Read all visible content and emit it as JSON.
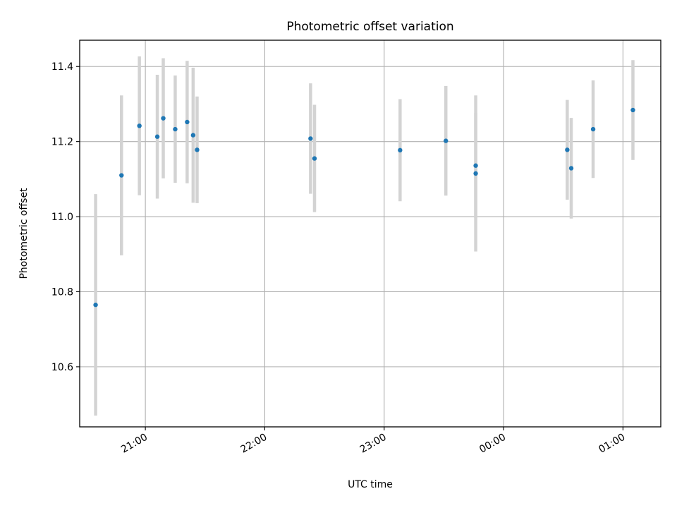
{
  "chart_data": {
    "type": "scatter",
    "title": "Photometric offset variation",
    "xlabel": "UTC time",
    "ylabel": "Photometric offset",
    "x_unit": "UTC time of day (HH:MM, crossing midnight)",
    "xlim": [
      "20:27",
      "01:19"
    ],
    "ylim": [
      10.44,
      11.47
    ],
    "x_ticks": [
      "21:00",
      "22:00",
      "23:00",
      "00:00",
      "01:00"
    ],
    "y_ticks": [
      10.6,
      10.8,
      11.0,
      11.2,
      11.4
    ],
    "y_tick_labels": [
      "10.6",
      "10.8",
      "11.0",
      "11.2",
      "11.4"
    ],
    "grid": true,
    "marker_color": "#1f77b4",
    "errorbar_color": "#d3d3d3",
    "points": [
      {
        "t": "20:35",
        "y": 10.765,
        "err": 0.295
      },
      {
        "t": "20:48",
        "y": 11.11,
        "err": 0.213
      },
      {
        "t": "20:57",
        "y": 11.242,
        "err": 0.185
      },
      {
        "t": "21:06",
        "y": 11.213,
        "err": 0.165
      },
      {
        "t": "21:09",
        "y": 11.262,
        "err": 0.16
      },
      {
        "t": "21:15",
        "y": 11.233,
        "err": 0.143
      },
      {
        "t": "21:21",
        "y": 11.252,
        "err": 0.163
      },
      {
        "t": "21:24",
        "y": 11.217,
        "err": 0.18
      },
      {
        "t": "21:26",
        "y": 11.178,
        "err": 0.142
      },
      {
        "t": "22:23",
        "y": 11.208,
        "err": 0.147
      },
      {
        "t": "22:25",
        "y": 11.155,
        "err": 0.143
      },
      {
        "t": "23:08",
        "y": 11.177,
        "err": 0.136
      },
      {
        "t": "23:31",
        "y": 11.202,
        "err": 0.146
      },
      {
        "t": "23:46",
        "y": 11.136,
        "err": 0.14
      },
      {
        "t": "23:46",
        "y": 11.115,
        "err": 0.208
      },
      {
        "t": "00:32",
        "y": 11.178,
        "err": 0.133
      },
      {
        "t": "00:34",
        "y": 11.129,
        "err": 0.134
      },
      {
        "t": "00:45",
        "y": 11.233,
        "err": 0.13
      },
      {
        "t": "01:05",
        "y": 11.284,
        "err": 0.133
      }
    ]
  }
}
